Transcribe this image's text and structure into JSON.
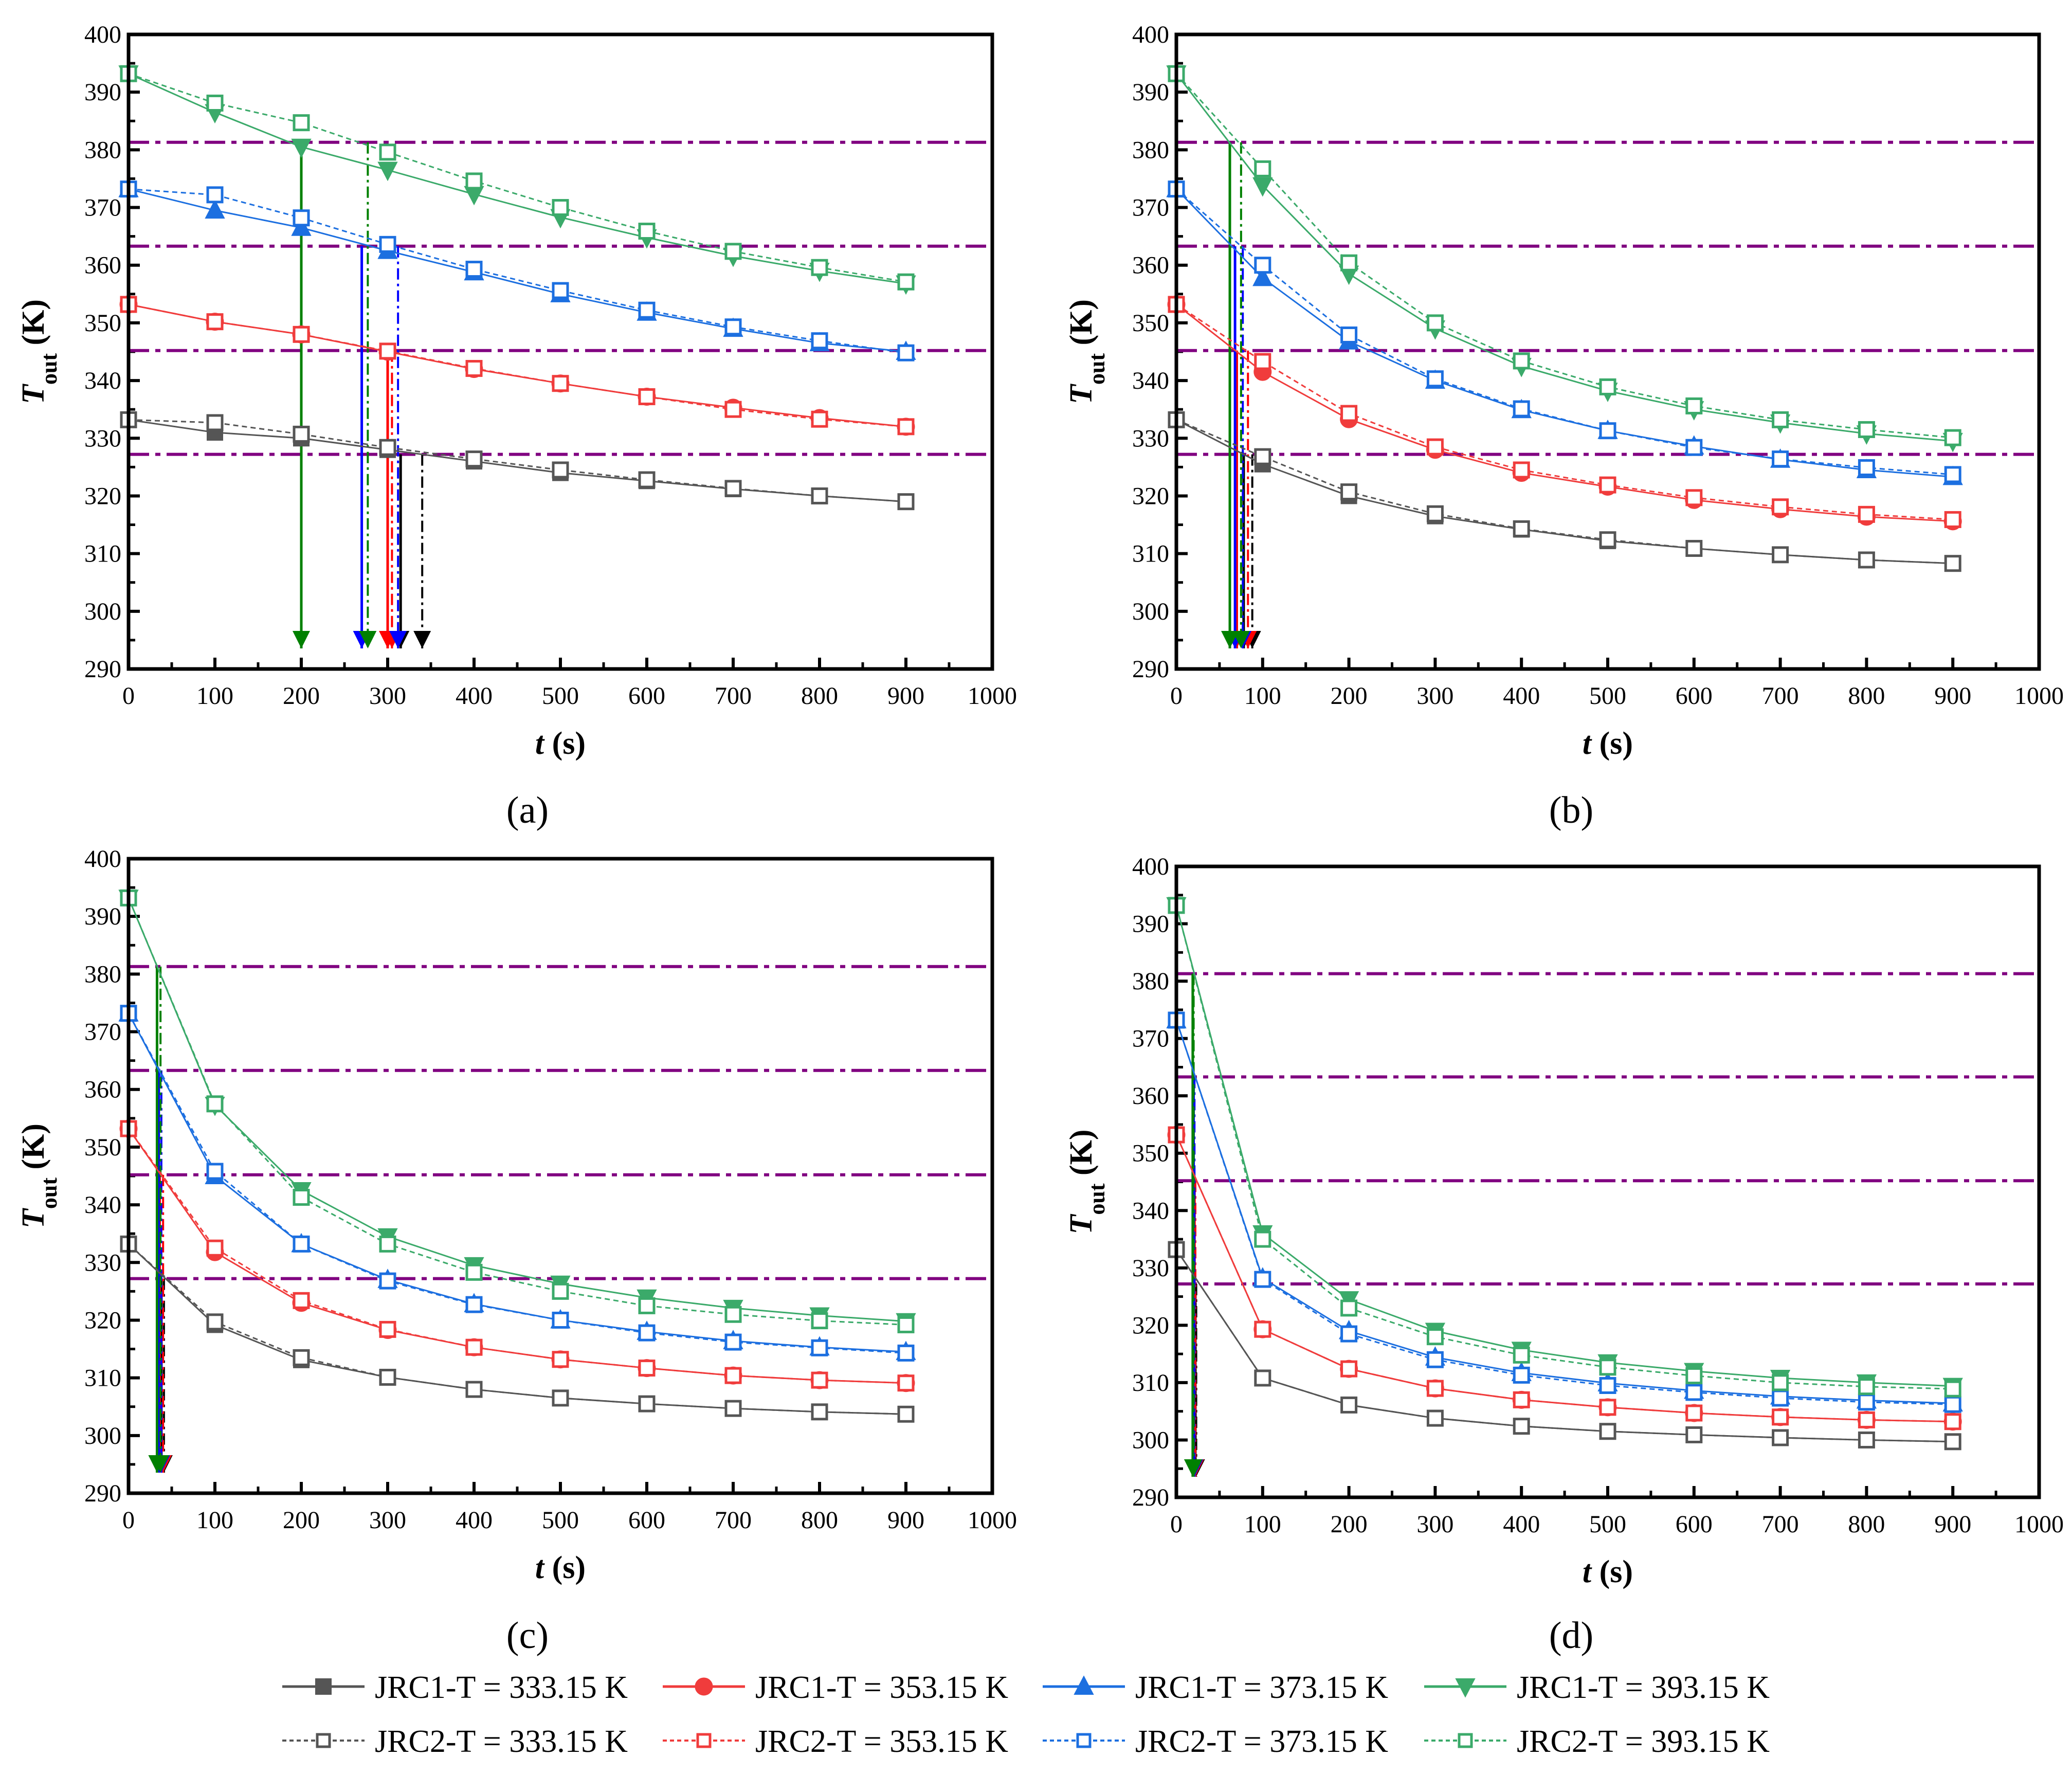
{
  "legend": [
    {
      "label": "JRC1-T = 333.15 K",
      "color": "#555555",
      "marker": "square",
      "filled": true,
      "dash": false
    },
    {
      "label": "JRC1-T = 353.15 K",
      "color": "#F03C3C",
      "marker": "circle",
      "filled": true,
      "dash": false
    },
    {
      "label": "JRC1-T = 373.15 K",
      "color": "#1C6FE0",
      "marker": "triangle-up",
      "filled": true,
      "dash": false
    },
    {
      "label": "JRC1-T = 393.15 K",
      "color": "#3BAA6A",
      "marker": "triangle-down",
      "filled": true,
      "dash": false
    },
    {
      "label": "JRC2-T = 333.15 K",
      "color": "#555555",
      "marker": "square",
      "filled": false,
      "dash": true
    },
    {
      "label": "JRC2-T = 353.15 K",
      "color": "#F03C3C",
      "marker": "square",
      "filled": false,
      "dash": true
    },
    {
      "label": "JRC2-T = 373.15 K",
      "color": "#1C6FE0",
      "marker": "square",
      "filled": false,
      "dash": true
    },
    {
      "label": "JRC2-T = 393.15 K",
      "color": "#3BAA6A",
      "marker": "square",
      "filled": false,
      "dash": true
    }
  ],
  "arrow_colors": [
    "#000000",
    "#FF0000",
    "#0000FF",
    "#008000"
  ],
  "threshold_color": "#800080",
  "chart_data": [
    {
      "type": "line",
      "panel_label": "(a)",
      "xlabel": {
        "italic": "t",
        "rest": " (s)"
      },
      "ylabel": {
        "italic": "T",
        "sub": "out",
        "rest": " (K)"
      },
      "xlim": [
        0,
        1000
      ],
      "ylim": [
        290,
        400
      ],
      "xticks": [
        0,
        100,
        200,
        300,
        400,
        500,
        600,
        700,
        800,
        900,
        1000
      ],
      "yticks": [
        290,
        300,
        310,
        320,
        330,
        340,
        350,
        360,
        370,
        380,
        390,
        400
      ],
      "x": [
        0,
        100,
        200,
        300,
        400,
        500,
        600,
        700,
        800,
        900
      ],
      "thresholds": [
        381.3,
        363.3,
        345.2,
        327.2
      ],
      "series": [
        {
          "name": "JRC1-T = 333.15 K",
          "values": [
            333.2,
            331,
            330,
            328,
            326,
            324,
            322.6,
            321.2,
            320,
            319
          ]
        },
        {
          "name": "JRC1-T = 353.15 K",
          "values": [
            353.2,
            350.2,
            348,
            345,
            342,
            339.5,
            337.2,
            335.3,
            333.5,
            332
          ]
        },
        {
          "name": "JRC1-T = 373.15 K",
          "values": [
            373.2,
            369.5,
            366.5,
            362.5,
            358.8,
            355,
            351.8,
            349,
            346.5,
            345
          ]
        },
        {
          "name": "JRC1-T = 393.15 K",
          "values": [
            393.2,
            386.5,
            380.5,
            376.5,
            372.3,
            368.3,
            364.8,
            361.6,
            359,
            356.8
          ]
        },
        {
          "name": "JRC2-T = 333.15 K",
          "values": [
            333.2,
            332.7,
            330.7,
            328.4,
            326.4,
            324.5,
            322.8,
            321.3,
            320,
            319
          ]
        },
        {
          "name": "JRC2-T = 353.15 K",
          "values": [
            353.2,
            350.2,
            348,
            345.1,
            342.1,
            339.5,
            337.2,
            335,
            333.3,
            332
          ]
        },
        {
          "name": "JRC2-T = 373.15 K",
          "values": [
            373.2,
            372.2,
            368.2,
            363.6,
            359.3,
            355.6,
            352.2,
            349.3,
            346.9,
            344.8
          ]
        },
        {
          "name": "JRC2-T = 393.15 K",
          "values": [
            393.2,
            388.1,
            384.7,
            379.6,
            374.6,
            370,
            365.9,
            362.4,
            359.6,
            357.1
          ]
        }
      ],
      "arrival_times": {
        "JRC1": [
          315,
          300,
          270,
          200
        ],
        "JRC2": [
          340,
          305,
          312,
          277
        ]
      }
    },
    {
      "type": "line",
      "panel_label": "(b)",
      "xlabel": {
        "italic": "t",
        "rest": " (s)"
      },
      "ylabel": {
        "italic": "T",
        "sub": "out",
        "rest": " (K)"
      },
      "xlim": [
        0,
        1000
      ],
      "ylim": [
        290,
        400
      ],
      "xticks": [
        0,
        100,
        200,
        300,
        400,
        500,
        600,
        700,
        800,
        900,
        1000
      ],
      "yticks": [
        290,
        300,
        310,
        320,
        330,
        340,
        350,
        360,
        370,
        380,
        390,
        400
      ],
      "x": [
        0,
        100,
        200,
        300,
        400,
        500,
        600,
        700,
        800,
        900
      ],
      "thresholds": [
        381.3,
        363.3,
        345.2,
        327.2
      ],
      "series": [
        {
          "name": "JRC1-T = 333.15 K",
          "values": [
            333.2,
            325.5,
            320,
            316.5,
            314.2,
            312.2,
            310.9,
            309.8,
            308.9,
            308.3
          ]
        },
        {
          "name": "JRC1-T = 353.15 K",
          "values": [
            353.2,
            341.5,
            333.3,
            328,
            324,
            321.6,
            319.3,
            317.7,
            316.4,
            315.6
          ]
        },
        {
          "name": "JRC1-T = 373.15 K",
          "values": [
            373.2,
            357.8,
            346.8,
            340,
            334.9,
            331.3,
            328.6,
            326.3,
            324.5,
            323.3
          ]
        },
        {
          "name": "JRC1-T = 393.15 K",
          "values": [
            393.2,
            373.8,
            358.5,
            349,
            342.5,
            338.2,
            335,
            332.7,
            330.8,
            329.5
          ]
        },
        {
          "name": "JRC2-T = 333.15 K",
          "values": [
            333.2,
            326.8,
            320.7,
            316.9,
            314.3,
            312.4,
            310.9,
            309.8,
            308.9,
            308.3
          ]
        },
        {
          "name": "JRC2-T = 353.15 K",
          "values": [
            353.2,
            343.3,
            334.3,
            328.5,
            324.5,
            321.9,
            319.7,
            318.1,
            316.8,
            315.9
          ]
        },
        {
          "name": "JRC2-T = 373.15 K",
          "values": [
            373.2,
            360,
            347.9,
            340.3,
            335.1,
            331.3,
            328.4,
            326.4,
            324.9,
            323.7
          ]
        },
        {
          "name": "JRC2-T = 393.15 K",
          "values": [
            393.2,
            376.7,
            360.4,
            350,
            343.4,
            338.9,
            335.6,
            333.2,
            331.5,
            330.1
          ]
        }
      ],
      "arrival_times": {
        "JRC1": [
          78,
          70,
          68,
          62
        ],
        "JRC2": [
          88,
          83,
          77,
          75
        ]
      }
    },
    {
      "type": "line",
      "panel_label": "(c)",
      "xlabel": {
        "italic": "t",
        "rest": " (s)"
      },
      "ylabel": {
        "italic": "T",
        "sub": "out",
        "rest": " (K)"
      },
      "xlim": [
        0,
        1000
      ],
      "ylim": [
        290,
        400
      ],
      "xticks": [
        0,
        100,
        200,
        300,
        400,
        500,
        600,
        700,
        800,
        900,
        1000
      ],
      "yticks": [
        290,
        300,
        310,
        320,
        330,
        340,
        350,
        360,
        370,
        380,
        390,
        400
      ],
      "x": [
        0,
        100,
        200,
        300,
        400,
        500,
        600,
        700,
        800,
        900
      ],
      "thresholds": [
        381.3,
        363.3,
        345.2,
        327.2
      ],
      "series": [
        {
          "name": "JRC1-T = 333.15 K",
          "values": [
            333.2,
            319.2,
            313.1,
            310.1,
            308,
            306.5,
            305.5,
            304.7,
            304.1,
            303.7
          ]
        },
        {
          "name": "JRC1-T = 353.15 K",
          "values": [
            353.2,
            331.8,
            323,
            318.3,
            315.3,
            313.2,
            311.7,
            310.4,
            309.6,
            309.1
          ]
        },
        {
          "name": "JRC1-T = 373.15 K",
          "values": [
            373.2,
            345,
            333.2,
            327,
            322.8,
            320,
            318,
            316.4,
            315.3,
            314.5
          ]
        },
        {
          "name": "JRC1-T = 393.15 K",
          "values": [
            393.2,
            357.3,
            342.5,
            334.5,
            329.5,
            326.3,
            323.9,
            322.1,
            320.8,
            319.8
          ]
        },
        {
          "name": "JRC2-T = 333.15 K",
          "values": [
            333.2,
            319.7,
            313.5,
            310.1,
            308,
            306.5,
            305.5,
            304.7,
            304.1,
            303.7
          ]
        },
        {
          "name": "JRC2-T = 353.15 K",
          "values": [
            353.2,
            332.5,
            323.4,
            318.4,
            315.3,
            313.2,
            311.7,
            310.4,
            309.6,
            309.1
          ]
        },
        {
          "name": "JRC2-T = 373.15 K",
          "values": [
            373.2,
            345.8,
            333.2,
            326.8,
            322.7,
            320,
            317.8,
            316.2,
            315.2,
            314.3
          ]
        },
        {
          "name": "JRC2-T = 393.15 K",
          "values": [
            393.2,
            357.5,
            341.3,
            333.2,
            328.3,
            325,
            322.5,
            321,
            319.9,
            319.2
          ]
        }
      ],
      "arrival_times": {
        "JRC1": [
          38,
          36,
          35,
          33
        ],
        "JRC2": [
          41,
          40,
          38,
          37
        ]
      }
    },
    {
      "type": "line",
      "panel_label": "(d)",
      "xlabel": {
        "italic": "t",
        "rest": " (s)"
      },
      "ylabel": {
        "italic": "T",
        "sub": "out",
        "rest": " (K)"
      },
      "xlim": [
        0,
        1000
      ],
      "ylim": [
        290,
        400
      ],
      "xticks": [
        0,
        100,
        200,
        300,
        400,
        500,
        600,
        700,
        800,
        900,
        1000
      ],
      "yticks": [
        290,
        300,
        310,
        320,
        330,
        340,
        350,
        360,
        370,
        380,
        390,
        400
      ],
      "x": [
        0,
        100,
        200,
        300,
        400,
        500,
        600,
        700,
        800,
        900
      ],
      "thresholds": [
        381.3,
        363.3,
        345.2,
        327.2
      ],
      "series": [
        {
          "name": "JRC1-T = 333.15 K",
          "values": [
            333.2,
            310.8,
            306.1,
            303.8,
            302.4,
            301.5,
            300.9,
            300.4,
            300,
            299.7
          ]
        },
        {
          "name": "JRC1-T = 353.15 K",
          "values": [
            353.2,
            319.3,
            312.4,
            309,
            307,
            305.7,
            304.7,
            304,
            303.5,
            303.2
          ]
        },
        {
          "name": "JRC1-T = 373.15 K",
          "values": [
            373.2,
            328.2,
            319,
            314.4,
            311.7,
            309.9,
            308.6,
            307.6,
            306.9,
            306.4
          ]
        },
        {
          "name": "JRC1-T = 393.15 K",
          "values": [
            393.2,
            336,
            324.5,
            319,
            315.7,
            313.5,
            312,
            310.8,
            310,
            309.4
          ]
        },
        {
          "name": "JRC2-T = 333.15 K",
          "values": [
            333.2,
            310.8,
            306.1,
            303.8,
            302.4,
            301.5,
            300.9,
            300.4,
            300,
            299.7
          ]
        },
        {
          "name": "JRC2-T = 353.15 K",
          "values": [
            353.2,
            319.3,
            312.4,
            309,
            307,
            305.7,
            304.7,
            304,
            303.5,
            303.2
          ]
        },
        {
          "name": "JRC2-T = 373.15 K",
          "values": [
            373.2,
            328,
            318.5,
            314,
            311.3,
            309.5,
            308.3,
            307.3,
            306.6,
            306.2
          ]
        },
        {
          "name": "JRC2-T = 393.15 K",
          "values": [
            393.2,
            335,
            323,
            318,
            314.8,
            312.7,
            311.2,
            310,
            309.3,
            308.9
          ]
        }
      ],
      "arrival_times": {
        "JRC1": [
          22,
          21,
          20,
          19
        ],
        "JRC2": [
          23,
          22,
          21,
          20
        ]
      }
    }
  ]
}
